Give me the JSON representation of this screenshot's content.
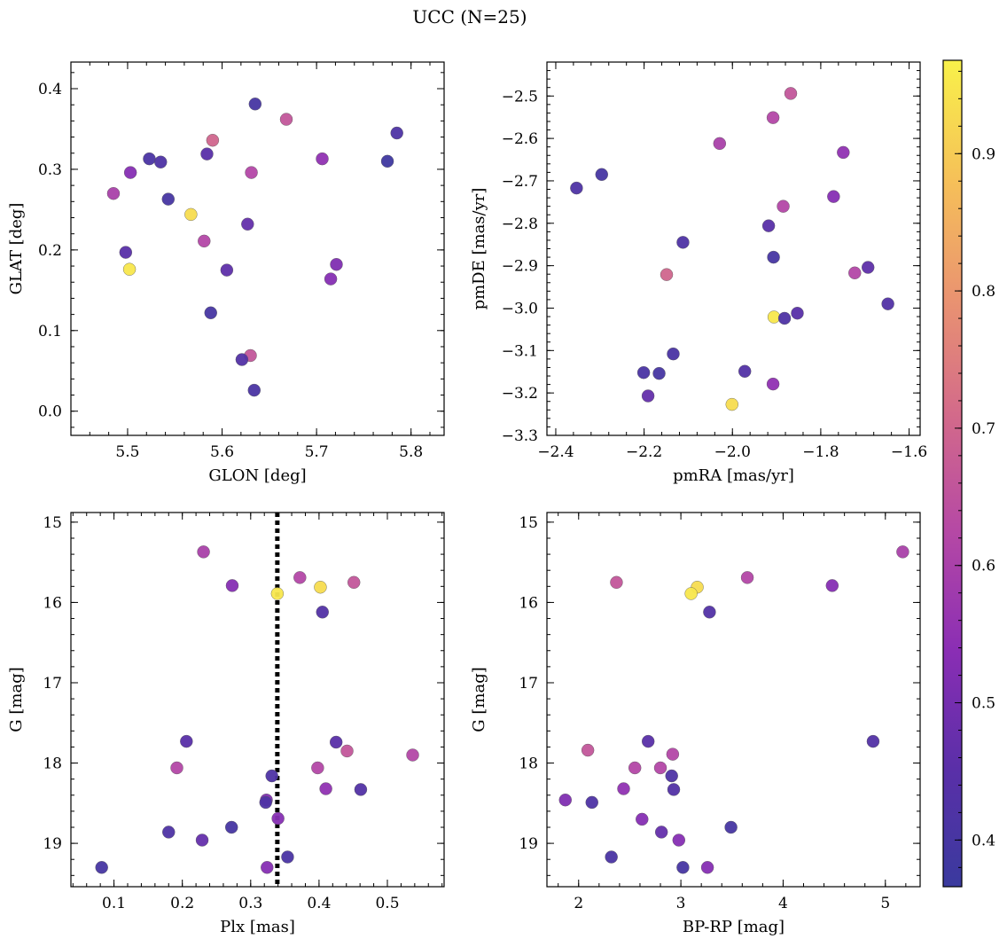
{
  "figure": {
    "title": "UCC (N=25)"
  },
  "colormap": {
    "name": "plasma",
    "range": [
      0.366,
      0.968
    ],
    "stops": [
      "#3a3a9e",
      "#5a2fa8",
      "#8a2eb4",
      "#b548a5",
      "#d36a8a",
      "#ea9470",
      "#f6c158",
      "#f8f14a"
    ],
    "ticks": [
      0.4,
      0.5,
      0.6,
      0.7,
      0.8,
      0.9
    ],
    "tick_labels": [
      "0.4",
      "0.5",
      "0.6",
      "0.7",
      "0.8",
      "0.9"
    ]
  },
  "chart_data": [
    {
      "type": "scatter",
      "name": "glon-glat",
      "xlabel": "GLON [deg]",
      "ylabel": "GLAT [deg]",
      "xlim": [
        5.44,
        5.835
      ],
      "ylim": [
        -0.03,
        0.433
      ],
      "yinvert": false,
      "xticks": [
        5.5,
        5.6,
        5.7,
        5.8
      ],
      "xtick_labels": [
        "5.5",
        "5.6",
        "5.7",
        "5.8"
      ],
      "yticks": [
        0.0,
        0.1,
        0.2,
        0.3,
        0.4
      ],
      "ytick_labels": [
        "0.0",
        "0.1",
        "0.2",
        "0.3",
        "0.4"
      ],
      "points": [
        {
          "x": 5.635,
          "y": 0.381,
          "c": 0.4
        },
        {
          "x": 5.668,
          "y": 0.362,
          "c": 0.66
        },
        {
          "x": 5.785,
          "y": 0.345,
          "c": 0.42
        },
        {
          "x": 5.59,
          "y": 0.336,
          "c": 0.7
        },
        {
          "x": 5.584,
          "y": 0.319,
          "c": 0.45
        },
        {
          "x": 5.523,
          "y": 0.313,
          "c": 0.41
        },
        {
          "x": 5.706,
          "y": 0.313,
          "c": 0.55
        },
        {
          "x": 5.535,
          "y": 0.309,
          "c": 0.42
        },
        {
          "x": 5.775,
          "y": 0.31,
          "c": 0.38
        },
        {
          "x": 5.631,
          "y": 0.296,
          "c": 0.62
        },
        {
          "x": 5.503,
          "y": 0.296,
          "c": 0.53
        },
        {
          "x": 5.485,
          "y": 0.27,
          "c": 0.6
        },
        {
          "x": 5.543,
          "y": 0.263,
          "c": 0.4
        },
        {
          "x": 5.567,
          "y": 0.244,
          "c": 0.93
        },
        {
          "x": 5.627,
          "y": 0.232,
          "c": 0.47
        },
        {
          "x": 5.581,
          "y": 0.211,
          "c": 0.62
        },
        {
          "x": 5.498,
          "y": 0.197,
          "c": 0.45
        },
        {
          "x": 5.721,
          "y": 0.182,
          "c": 0.52
        },
        {
          "x": 5.502,
          "y": 0.176,
          "c": 0.95
        },
        {
          "x": 5.605,
          "y": 0.175,
          "c": 0.46
        },
        {
          "x": 5.715,
          "y": 0.164,
          "c": 0.53
        },
        {
          "x": 5.588,
          "y": 0.122,
          "c": 0.4
        },
        {
          "x": 5.63,
          "y": 0.069,
          "c": 0.66
        },
        {
          "x": 5.621,
          "y": 0.064,
          "c": 0.43
        },
        {
          "x": 5.634,
          "y": 0.026,
          "c": 0.41
        }
      ]
    },
    {
      "type": "scatter",
      "name": "pmra-pmde",
      "xlabel": "pmRA [mas/yr]",
      "ylabel": "pmDE [mas/yr]",
      "xlim": [
        -2.42,
        -1.575
      ],
      "ylim": [
        -3.3,
        -2.42
      ],
      "yinvert": false,
      "xticks": [
        -2.4,
        -2.2,
        -2.0,
        -1.8,
        -1.6
      ],
      "xtick_labels": [
        "−2.4",
        "−2.2",
        "−2.0",
        "−1.8",
        "−1.6"
      ],
      "yticks": [
        -3.3,
        -3.2,
        -3.1,
        -3.0,
        -2.9,
        -2.8,
        -2.7,
        -2.6,
        -2.5
      ],
      "ytick_labels": [
        "−3.3",
        "−3.2",
        "−3.1",
        "−3.0",
        "−2.9",
        "−2.8",
        "−2.7",
        "−2.6",
        "−2.5"
      ],
      "points": [
        {
          "x": -1.868,
          "y": -2.494,
          "c": 0.66
        },
        {
          "x": -1.908,
          "y": -2.551,
          "c": 0.62
        },
        {
          "x": -2.029,
          "y": -2.612,
          "c": 0.6
        },
        {
          "x": -1.749,
          "y": -2.633,
          "c": 0.55
        },
        {
          "x": -2.296,
          "y": -2.685,
          "c": 0.4
        },
        {
          "x": -2.353,
          "y": -2.717,
          "c": 0.42
        },
        {
          "x": -1.771,
          "y": -2.737,
          "c": 0.53
        },
        {
          "x": -1.885,
          "y": -2.76,
          "c": 0.62
        },
        {
          "x": -1.918,
          "y": -2.806,
          "c": 0.45
        },
        {
          "x": -2.112,
          "y": -2.845,
          "c": 0.42
        },
        {
          "x": -1.907,
          "y": -2.88,
          "c": 0.4
        },
        {
          "x": -1.693,
          "y": -2.904,
          "c": 0.46
        },
        {
          "x": -1.723,
          "y": -2.917,
          "c": 0.62
        },
        {
          "x": -2.149,
          "y": -2.921,
          "c": 0.7
        },
        {
          "x": -1.648,
          "y": -2.99,
          "c": 0.43
        },
        {
          "x": -1.853,
          "y": -3.012,
          "c": 0.45
        },
        {
          "x": -1.906,
          "y": -3.021,
          "c": 0.95
        },
        {
          "x": -1.882,
          "y": -3.024,
          "c": 0.42
        },
        {
          "x": -2.134,
          "y": -3.108,
          "c": 0.41
        },
        {
          "x": -1.972,
          "y": -3.149,
          "c": 0.43
        },
        {
          "x": -2.201,
          "y": -3.152,
          "c": 0.41
        },
        {
          "x": -2.166,
          "y": -3.154,
          "c": 0.4
        },
        {
          "x": -1.908,
          "y": -3.179,
          "c": 0.55
        },
        {
          "x": -2.191,
          "y": -3.207,
          "c": 0.47
        },
        {
          "x": -2.001,
          "y": -3.227,
          "c": 0.93
        }
      ]
    },
    {
      "type": "scatter",
      "name": "plx-g",
      "xlabel": "Plx [mas]",
      "ylabel": "G [mag]",
      "xlim": [
        0.037,
        0.583
      ],
      "ylim": [
        14.88,
        19.54
      ],
      "yinvert": true,
      "xticks": [
        0.1,
        0.2,
        0.3,
        0.4,
        0.5
      ],
      "xtick_labels": [
        "0.1",
        "0.2",
        "0.3",
        "0.4",
        "0.5"
      ],
      "yticks": [
        15,
        16,
        17,
        18,
        19
      ],
      "ytick_labels": [
        "15",
        "16",
        "17",
        "18",
        "19"
      ],
      "vline": {
        "x": 0.339,
        "style": "dotted"
      },
      "points": [
        {
          "x": 0.231,
          "y": 15.37,
          "c": 0.6
        },
        {
          "x": 0.372,
          "y": 15.69,
          "c": 0.62
        },
        {
          "x": 0.451,
          "y": 15.75,
          "c": 0.66
        },
        {
          "x": 0.273,
          "y": 15.79,
          "c": 0.53
        },
        {
          "x": 0.402,
          "y": 15.81,
          "c": 0.93
        },
        {
          "x": 0.339,
          "y": 15.89,
          "c": 0.95
        },
        {
          "x": 0.405,
          "y": 16.12,
          "c": 0.43
        },
        {
          "x": 0.206,
          "y": 17.73,
          "c": 0.45
        },
        {
          "x": 0.425,
          "y": 17.74,
          "c": 0.45
        },
        {
          "x": 0.441,
          "y": 17.85,
          "c": 0.66
        },
        {
          "x": 0.537,
          "y": 17.9,
          "c": 0.62
        },
        {
          "x": 0.192,
          "y": 18.06,
          "c": 0.62
        },
        {
          "x": 0.398,
          "y": 18.06,
          "c": 0.62
        },
        {
          "x": 0.331,
          "y": 18.16,
          "c": 0.42
        },
        {
          "x": 0.41,
          "y": 18.32,
          "c": 0.55
        },
        {
          "x": 0.461,
          "y": 18.33,
          "c": 0.43
        },
        {
          "x": 0.323,
          "y": 18.46,
          "c": 0.52
        },
        {
          "x": 0.322,
          "y": 18.49,
          "c": 0.42
        },
        {
          "x": 0.34,
          "y": 18.69,
          "c": 0.53
        },
        {
          "x": 0.272,
          "y": 18.8,
          "c": 0.4
        },
        {
          "x": 0.18,
          "y": 18.86,
          "c": 0.42
        },
        {
          "x": 0.229,
          "y": 18.96,
          "c": 0.47
        },
        {
          "x": 0.354,
          "y": 19.17,
          "c": 0.41
        },
        {
          "x": 0.082,
          "y": 19.3,
          "c": 0.4
        },
        {
          "x": 0.324,
          "y": 19.3,
          "c": 0.53
        }
      ]
    },
    {
      "type": "scatter",
      "name": "color-g",
      "xlabel": "BP-RP [mag]",
      "ylabel": "G [mag]",
      "xlim": [
        1.69,
        5.34
      ],
      "ylim": [
        14.88,
        19.54
      ],
      "yinvert": true,
      "xticks": [
        2,
        3,
        4,
        5
      ],
      "xtick_labels": [
        "2",
        "3",
        "4",
        "5"
      ],
      "yticks": [
        15,
        16,
        17,
        18,
        19
      ],
      "ytick_labels": [
        "15",
        "16",
        "17",
        "18",
        "19"
      ],
      "points": [
        {
          "x": 5.17,
          "y": 15.37,
          "c": 0.6
        },
        {
          "x": 3.65,
          "y": 15.69,
          "c": 0.62
        },
        {
          "x": 2.37,
          "y": 15.75,
          "c": 0.66
        },
        {
          "x": 4.48,
          "y": 15.79,
          "c": 0.53
        },
        {
          "x": 3.16,
          "y": 15.81,
          "c": 0.93
        },
        {
          "x": 3.1,
          "y": 15.89,
          "c": 0.95
        },
        {
          "x": 3.28,
          "y": 16.12,
          "c": 0.43
        },
        {
          "x": 2.68,
          "y": 17.73,
          "c": 0.45
        },
        {
          "x": 4.88,
          "y": 17.73,
          "c": 0.43
        },
        {
          "x": 2.09,
          "y": 17.84,
          "c": 0.66
        },
        {
          "x": 2.92,
          "y": 17.89,
          "c": 0.62
        },
        {
          "x": 2.55,
          "y": 18.06,
          "c": 0.62
        },
        {
          "x": 2.8,
          "y": 18.06,
          "c": 0.62
        },
        {
          "x": 2.91,
          "y": 18.16,
          "c": 0.42
        },
        {
          "x": 2.93,
          "y": 18.33,
          "c": 0.43
        },
        {
          "x": 2.44,
          "y": 18.32,
          "c": 0.55
        },
        {
          "x": 1.87,
          "y": 18.46,
          "c": 0.52
        },
        {
          "x": 2.13,
          "y": 18.49,
          "c": 0.42
        },
        {
          "x": 2.62,
          "y": 18.7,
          "c": 0.53
        },
        {
          "x": 3.49,
          "y": 18.8,
          "c": 0.4
        },
        {
          "x": 2.81,
          "y": 18.86,
          "c": 0.47
        },
        {
          "x": 2.98,
          "y": 18.96,
          "c": 0.53
        },
        {
          "x": 2.32,
          "y": 19.17,
          "c": 0.41
        },
        {
          "x": 3.02,
          "y": 19.3,
          "c": 0.4
        },
        {
          "x": 3.26,
          "y": 19.3,
          "c": 0.53
        }
      ]
    }
  ]
}
